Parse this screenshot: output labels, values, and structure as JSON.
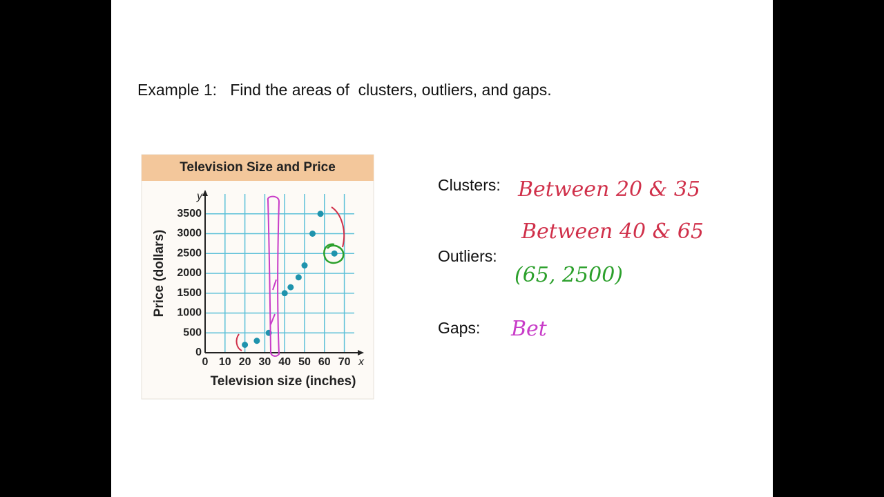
{
  "slide": {
    "heading": "Example 1:   Find the areas of  clusters, outliers, and gaps.",
    "labels": {
      "clusters": "Clusters:",
      "outliers": "Outliers:",
      "gaps": "Gaps:"
    },
    "handwriting": {
      "cluster_1": "Between 20 & 35",
      "cluster_2": "Between 40 & 65",
      "outlier": "(65, 2500)",
      "gap": "Bet"
    }
  },
  "chart_data": {
    "type": "scatter",
    "title": "Television Size and Price",
    "x_label": "Television size (inches)",
    "y_label": "Price (dollars)",
    "x_axis_symbol": "x",
    "y_axis_symbol": "y",
    "x": [
      20,
      26,
      32,
      40,
      43,
      47,
      50,
      54,
      58,
      65
    ],
    "values": [
      200,
      300,
      500,
      1500,
      1650,
      1900,
      2200,
      3000,
      3500,
      2500
    ],
    "color": "#1f93ad",
    "xlim": [
      0,
      75
    ],
    "ylim": [
      0,
      4000
    ],
    "xticks": [
      0,
      10,
      20,
      30,
      40,
      50,
      60,
      70
    ],
    "yticks": [
      0,
      500,
      1000,
      1500,
      2000,
      2500,
      3000,
      3500
    ],
    "grid": true
  }
}
